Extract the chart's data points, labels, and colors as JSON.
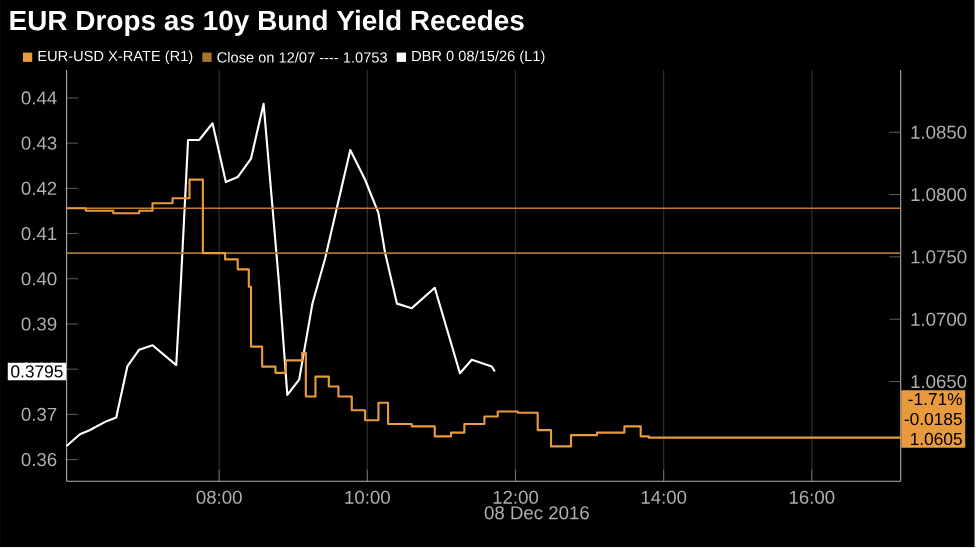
{
  "chart_data": {
    "type": "line",
    "title": "EUR Drops as 10y Bund Yield Recedes",
    "xlabel": "08 Dec 2016",
    "xlim": [
      5.94,
      17.2
    ],
    "xticks": [
      {
        "value": 8,
        "label": "08:00"
      },
      {
        "value": 10,
        "label": "10:00"
      },
      {
        "value": 12,
        "label": "12:00"
      },
      {
        "value": 14,
        "label": "14:00"
      },
      {
        "value": 16,
        "label": "16:00"
      }
    ],
    "ylim": [
      0.3552,
      0.4462
    ],
    "yticks": [
      0.36,
      0.37,
      0.38,
      0.39,
      {
        "value": 0.4,
        "label": "0.40"
      },
      0.41,
      0.42,
      0.43,
      0.44
    ],
    "y2lim": [
      1.057,
      1.09
    ],
    "y2ticks": [
      {
        "value": 1.065,
        "label": "1.0650"
      },
      {
        "value": 1.07,
        "label": "1.0700"
      },
      {
        "value": 1.075,
        "label": "1.0750"
      },
      {
        "value": 1.08,
        "label": "1.0800"
      },
      {
        "value": 1.085,
        "label": "1.0850"
      }
    ],
    "grid": "x",
    "legend": "top left",
    "series": [
      {
        "name": "EUR-USD X-RATE (R1)",
        "type": "step",
        "axis": "y2",
        "color": "#e89a3c",
        "x": [
          5.94,
          6.2,
          6.57,
          6.92,
          7.1,
          7.37,
          7.6,
          7.78,
          8.0,
          8.08,
          8.25,
          8.4,
          8.43,
          8.58,
          8.76,
          8.9,
          9.12,
          9.17,
          9.3,
          9.48,
          9.61,
          9.79,
          9.97,
          10.15,
          10.28,
          10.6,
          10.91,
          11.13,
          11.31,
          11.58,
          11.76,
          12.03,
          12.3,
          12.48,
          12.75,
          13.1,
          13.47,
          13.69,
          13.8,
          17.2
        ],
        "values": [
          1.0789,
          1.0787,
          1.0785,
          1.0787,
          1.0793,
          1.0797,
          1.0812,
          1.0753,
          1.0753,
          1.0748,
          1.074,
          1.0726,
          1.0678,
          1.0662,
          1.0657,
          1.0667,
          1.0673,
          1.0638,
          1.0654,
          1.0646,
          1.0638,
          1.0627,
          1.0619,
          1.0633,
          1.0616,
          1.0614,
          1.0606,
          1.0609,
          1.0616,
          1.0622,
          1.0626,
          1.0625,
          1.0611,
          1.0598,
          1.0607,
          1.0609,
          1.0614,
          1.0606,
          1.0605,
          1.0605
        ]
      },
      {
        "name": "DBR 0 08/15/26 (L1)",
        "color": "#ffffff",
        "x": [
          5.94,
          6.12,
          6.25,
          6.48,
          6.61,
          6.76,
          6.92,
          7.1,
          7.42,
          7.48,
          7.58,
          7.73,
          7.91,
          8.09,
          8.25,
          8.43,
          8.6,
          8.81,
          8.92,
          9.08,
          9.26,
          9.43,
          9.77,
          9.97,
          10.15,
          10.24,
          10.4,
          10.6,
          10.91,
          11.25,
          11.41,
          11.68,
          11.72
        ],
        "values": [
          0.363,
          0.3656,
          0.3665,
          0.3685,
          0.3693,
          0.3806,
          0.3843,
          0.3853,
          0.3809,
          0.3983,
          0.4307,
          0.4307,
          0.4344,
          0.4214,
          0.4225,
          0.4266,
          0.4387,
          0.3985,
          0.3743,
          0.3777,
          0.3946,
          0.4045,
          0.4285,
          0.4219,
          0.4145,
          0.4057,
          0.3945,
          0.3935,
          0.398,
          0.3791,
          0.3821,
          0.3806,
          0.3795
        ]
      }
    ],
    "ref_lines": [
      {
        "axis": "y2",
        "value": 1.0789,
        "color": "#c8782a"
      },
      {
        "axis": "y2",
        "value": 1.0753,
        "label": "Close on 12/07 ---- 1.0753",
        "color": "#a8742e"
      }
    ],
    "annotations": [
      "0.3795",
      "-1.71%",
      "-0.0185",
      "1.0605"
    ]
  }
}
